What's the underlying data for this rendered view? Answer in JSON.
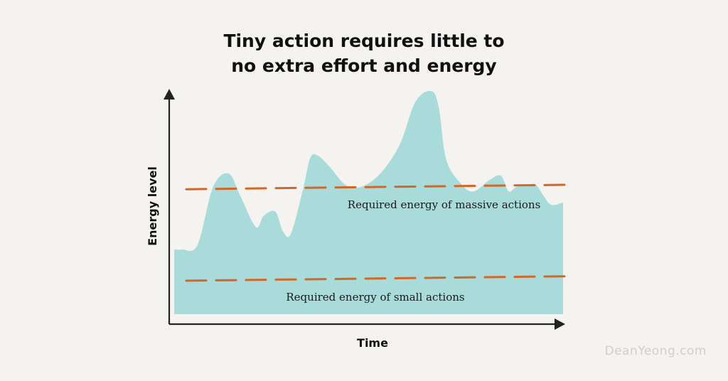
{
  "title_lines": [
    "Tiny action requires little to",
    "no extra effort and energy"
  ],
  "watermark": "DeanYeong.com",
  "chart_data": {
    "type": "area",
    "xlabel": "Time",
    "ylabel": "Energy level",
    "xlim": [
      0,
      100
    ],
    "ylim": [
      0,
      100
    ],
    "grid": false,
    "ticks_shown": false,
    "series": [
      {
        "x": [
          0,
          2,
          6,
          10,
          14,
          17,
          21,
          23,
          26,
          28,
          30,
          33,
          35,
          37,
          40,
          44,
          48,
          53,
          58,
          62,
          66,
          68,
          70,
          74,
          77,
          81,
          84,
          86,
          88,
          91,
          93,
          95,
          97,
          100
        ],
        "y": [
          29,
          29,
          31,
          57,
          63,
          53,
          39,
          44,
          46,
          37,
          36,
          55,
          70,
          71,
          66,
          58,
          57,
          63,
          76,
          95,
          100,
          93,
          69,
          58,
          55,
          60,
          62,
          55,
          57,
          58,
          58,
          53,
          49,
          50
        ],
        "color": "#a8dbd9"
      }
    ],
    "reference_lines": [
      {
        "label": "Required energy of massive actions",
        "y": [
          56,
          58
        ],
        "color": "#d2672a"
      },
      {
        "label": "Required energy of small actions",
        "y": [
          15,
          17
        ],
        "color": "#d2672a"
      }
    ]
  }
}
